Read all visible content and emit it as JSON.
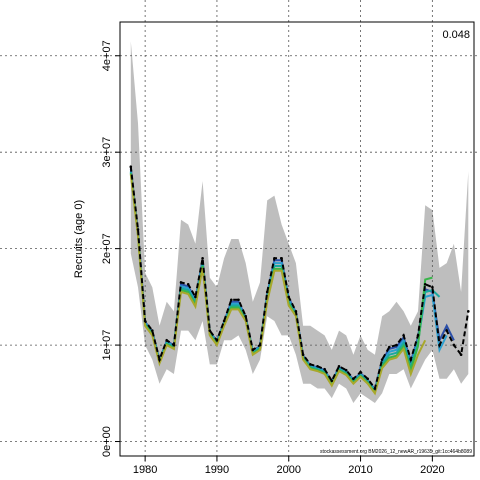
{
  "chart_data": {
    "type": "line",
    "ylabel": "Recruits (age 0)",
    "xlabel": "",
    "corner_value": "0.048",
    "footer_text": "stockassessment.org BM2026_12_newAR_r19635_git:1cc464b8089",
    "xlim": [
      1976.5,
      2025.8
    ],
    "ylim": [
      -1500000,
      43500000
    ],
    "x_ticks": [
      1980,
      1990,
      2000,
      2010,
      2020
    ],
    "x_tick_labels": [
      "1980",
      "1990",
      "2000",
      "2010",
      "2020"
    ],
    "y_ticks": [
      0,
      10000000,
      20000000,
      30000000,
      40000000
    ],
    "y_tick_labels": [
      "0e+00",
      "1e+07",
      "2e+07",
      "3e+07",
      "4e+07"
    ],
    "grid": true,
    "colors": {
      "band": "#bebebe",
      "base": "#000000",
      "peel_1": "#2b4fa8",
      "peel_2": "#2ba0d0",
      "peel_3": "#1aa8a0",
      "peel_4": "#39b54a",
      "peel_5": "#a8a82b"
    },
    "band": {
      "x": [
        1978,
        1979,
        1980,
        1981,
        1982,
        1983,
        1984,
        1985,
        1986,
        1987,
        1988,
        1989,
        1990,
        1991,
        1992,
        1993,
        1994,
        1995,
        1996,
        1997,
        1998,
        1999,
        2000,
        2001,
        2002,
        2003,
        2004,
        2005,
        2006,
        2007,
        2008,
        2009,
        2010,
        2011,
        2012,
        2013,
        2014,
        2015,
        2016,
        2017,
        2018,
        2019,
        2020,
        2021,
        2022,
        2023,
        2024,
        2025
      ],
      "lower": [
        19500000,
        16000000,
        10000000,
        8500000,
        6000000,
        7500000,
        7000000,
        11500000,
        11500000,
        10500000,
        12500000,
        8000000,
        8000000,
        10500000,
        10500000,
        11000000,
        9500000,
        7000000,
        8500000,
        13000000,
        12500000,
        11000000,
        11000000,
        9000000,
        6000000,
        6000000,
        5500000,
        5500000,
        4500000,
        6000000,
        5500000,
        4000000,
        5000000,
        4500000,
        4000000,
        5000000,
        7000000,
        7000000,
        7500000,
        5500000,
        7000000,
        8500000,
        9500000,
        6500000,
        6500000,
        7500000,
        6000000,
        7000000
      ],
      "upper": [
        41500000,
        33000000,
        17500000,
        16000000,
        12000000,
        14500000,
        13500000,
        23000000,
        22500000,
        20500000,
        27000000,
        17000000,
        16000000,
        19000000,
        21000000,
        21000000,
        18500000,
        14500000,
        16500000,
        25000000,
        25500000,
        22500000,
        20500000,
        18500000,
        12000000,
        12000000,
        11500000,
        11000000,
        9500000,
        11500000,
        11000000,
        9000000,
        11000000,
        9500000,
        9000000,
        13000000,
        13500000,
        14500000,
        13500000,
        12000000,
        13500000,
        24500000,
        24000000,
        18000000,
        18500000,
        20500000,
        15500000,
        28000000
      ]
    },
    "series": [
      {
        "x": [
          1978,
          1979,
          1980,
          1981,
          1982,
          1983,
          1984,
          1985,
          1986,
          1987,
          1988,
          1989,
          1990,
          1991,
          1992,
          1993,
          1994,
          1995,
          1996,
          1997,
          1998,
          1999,
          2000,
          2001,
          2002,
          2003,
          2004,
          2005,
          2006,
          2007,
          2008,
          2009,
          2010,
          2011,
          2012,
          2013,
          2014,
          2015,
          2016,
          2017,
          2018,
          2019,
          2020,
          2021,
          2022,
          2023,
          2024,
          2025
        ],
        "values": [
          28500000,
          22000000,
          12500000,
          11500000,
          8500000,
          10500000,
          10000000,
          16500000,
          16300000,
          15000000,
          19000000,
          11500000,
          10500000,
          12500000,
          14700000,
          14700000,
          13000000,
          9500000,
          10000000,
          15500000,
          19000000,
          19000000,
          15000000,
          13500000,
          9000000,
          8000000,
          7800000,
          7500000,
          6300000,
          7800000,
          7400000,
          6500000,
          7200000,
          6500000,
          5500000,
          8500000,
          9800000,
          10000000,
          11000000,
          8500000,
          11000000,
          16300000,
          16000000,
          10000000,
          11500000,
          10000000,
          9000000,
          13500000
        ],
        "style": "dashed-dots",
        "color_key": "base"
      },
      {
        "x": [
          1978,
          1979,
          1980,
          1981,
          1982,
          1983,
          1984,
          1985,
          1986,
          1987,
          1988,
          1989,
          1990,
          1991,
          1992,
          1993,
          1994,
          1995,
          1996,
          1997,
          1998,
          1999,
          2000,
          2001,
          2002,
          2003,
          2004,
          2005,
          2006,
          2007,
          2008,
          2009,
          2010,
          2011,
          2012,
          2013,
          2014,
          2015,
          2016,
          2017,
          2018,
          2019,
          2020,
          2021,
          2022,
          2023
        ],
        "values": [
          28300000,
          21800000,
          12400000,
          11400000,
          8500000,
          10400000,
          10000000,
          16300000,
          16100000,
          14800000,
          18800000,
          11400000,
          10400000,
          12400000,
          14500000,
          14500000,
          12900000,
          9400000,
          9900000,
          15300000,
          18800000,
          18800000,
          14900000,
          13400000,
          8900000,
          7900000,
          7700000,
          7400000,
          6200000,
          7700000,
          7300000,
          6400000,
          7100000,
          6400000,
          5400000,
          8400000,
          9600000,
          9800000,
          10800000,
          8300000,
          10800000,
          15800000,
          15500000,
          10500000,
          12000000,
          10500000
        ],
        "color_key": "peel_1"
      },
      {
        "x": [
          1978,
          1979,
          1980,
          1981,
          1982,
          1983,
          1984,
          1985,
          1986,
          1987,
          1988,
          1989,
          1990,
          1991,
          1992,
          1993,
          1994,
          1995,
          1996,
          1997,
          1998,
          1999,
          2000,
          2001,
          2002,
          2003,
          2004,
          2005,
          2006,
          2007,
          2008,
          2009,
          2010,
          2011,
          2012,
          2013,
          2014,
          2015,
          2016,
          2017,
          2018,
          2019,
          2020,
          2021,
          2022
        ],
        "values": [
          28000000,
          21600000,
          12300000,
          11300000,
          8400000,
          10300000,
          9900000,
          16100000,
          15900000,
          14600000,
          18600000,
          11300000,
          10300000,
          12300000,
          14300000,
          14300000,
          12800000,
          9300000,
          9800000,
          15100000,
          18500000,
          18500000,
          14700000,
          13300000,
          8800000,
          7800000,
          7600000,
          7300000,
          6100000,
          7600000,
          7200000,
          6300000,
          7000000,
          6300000,
          5300000,
          8200000,
          9300000,
          9500000,
          10500000,
          8000000,
          10500000,
          15000000,
          15200000,
          9500000,
          11000000
        ],
        "color_key": "peel_2"
      },
      {
        "x": [
          1978,
          1979,
          1980,
          1981,
          1982,
          1983,
          1984,
          1985,
          1986,
          1987,
          1988,
          1989,
          1990,
          1991,
          1992,
          1993,
          1994,
          1995,
          1996,
          1997,
          1998,
          1999,
          2000,
          2001,
          2002,
          2003,
          2004,
          2005,
          2006,
          2007,
          2008,
          2009,
          2010,
          2011,
          2012,
          2013,
          2014,
          2015,
          2016,
          2017,
          2018,
          2019,
          2020,
          2021
        ],
        "values": [
          27900000,
          21500000,
          12200000,
          11200000,
          8300000,
          10200000,
          9800000,
          15900000,
          15700000,
          14400000,
          18400000,
          11200000,
          10200000,
          12200000,
          14100000,
          14100000,
          12700000,
          9200000,
          9700000,
          14900000,
          18200000,
          18200000,
          14500000,
          13200000,
          8700000,
          7700000,
          7500000,
          7200000,
          6000000,
          7500000,
          7100000,
          6200000,
          6900000,
          6200000,
          5200000,
          8000000,
          9000000,
          9200000,
          10200000,
          7700000,
          10200000,
          15500000,
          15700000,
          15000000
        ],
        "color_key": "peel_3"
      },
      {
        "x": [
          1978,
          1979,
          1980,
          1981,
          1982,
          1983,
          1984,
          1985,
          1986,
          1987,
          1988,
          1989,
          1990,
          1991,
          1992,
          1993,
          1994,
          1995,
          1996,
          1997,
          1998,
          1999,
          2000,
          2001,
          2002,
          2003,
          2004,
          2005,
          2006,
          2007,
          2008,
          2009,
          2010,
          2011,
          2012,
          2013,
          2014,
          2015,
          2016,
          2017,
          2018,
          2019,
          2020
        ],
        "values": [
          27800000,
          21400000,
          12100000,
          11100000,
          8200000,
          10100000,
          9700000,
          15700000,
          15500000,
          14200000,
          18200000,
          11100000,
          10100000,
          12100000,
          13900000,
          13900000,
          12600000,
          9100000,
          9600000,
          14700000,
          17900000,
          17900000,
          14300000,
          13100000,
          8600000,
          7600000,
          7400000,
          7100000,
          5900000,
          7400000,
          7000000,
          6100000,
          6800000,
          6100000,
          5100000,
          7800000,
          8700000,
          8900000,
          9900000,
          7400000,
          9900000,
          16800000,
          17000000
        ],
        "color_key": "peel_4"
      },
      {
        "x": [
          1978,
          1979,
          1980,
          1981,
          1982,
          1983,
          1984,
          1985,
          1986,
          1987,
          1988,
          1989,
          1990,
          1991,
          1992,
          1993,
          1994,
          1995,
          1996,
          1997,
          1998,
          1999,
          2000,
          2001,
          2002,
          2003,
          2004,
          2005,
          2006,
          2007,
          2008,
          2009,
          2010,
          2011,
          2012,
          2013,
          2014,
          2015,
          2016,
          2017,
          2018,
          2019
        ],
        "values": [
          27700000,
          21300000,
          12000000,
          11000000,
          8100000,
          10000000,
          9600000,
          15500000,
          15300000,
          14000000,
          18000000,
          11000000,
          10000000,
          12000000,
          13700000,
          13700000,
          12500000,
          9000000,
          9500000,
          14500000,
          17700000,
          17700000,
          14100000,
          13000000,
          8500000,
          7500000,
          7300000,
          7000000,
          5800000,
          7300000,
          6900000,
          6000000,
          6700000,
          6000000,
          5000000,
          7600000,
          8500000,
          8700000,
          9600000,
          7000000,
          9000000,
          10500000
        ],
        "color_key": "peel_5"
      }
    ]
  }
}
